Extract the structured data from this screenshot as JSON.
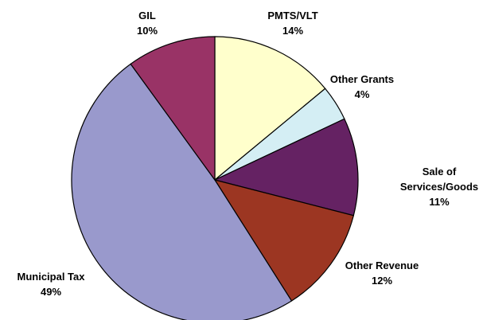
{
  "chart_data": {
    "type": "pie",
    "categories": [
      "PMTS/VLT",
      "Other Grants",
      "Sale of Services/Goods",
      "Other Revenue",
      "Municipal Tax",
      "GIL"
    ],
    "values": [
      14,
      4,
      11,
      12,
      49,
      10
    ],
    "value_labels": [
      "14%",
      "4%",
      "11%",
      "12%",
      "49%",
      "10%"
    ],
    "colors": [
      "#ffffcc",
      "#d4eef4",
      "#652263",
      "#9c3622",
      "#9999cc",
      "#993366"
    ]
  }
}
